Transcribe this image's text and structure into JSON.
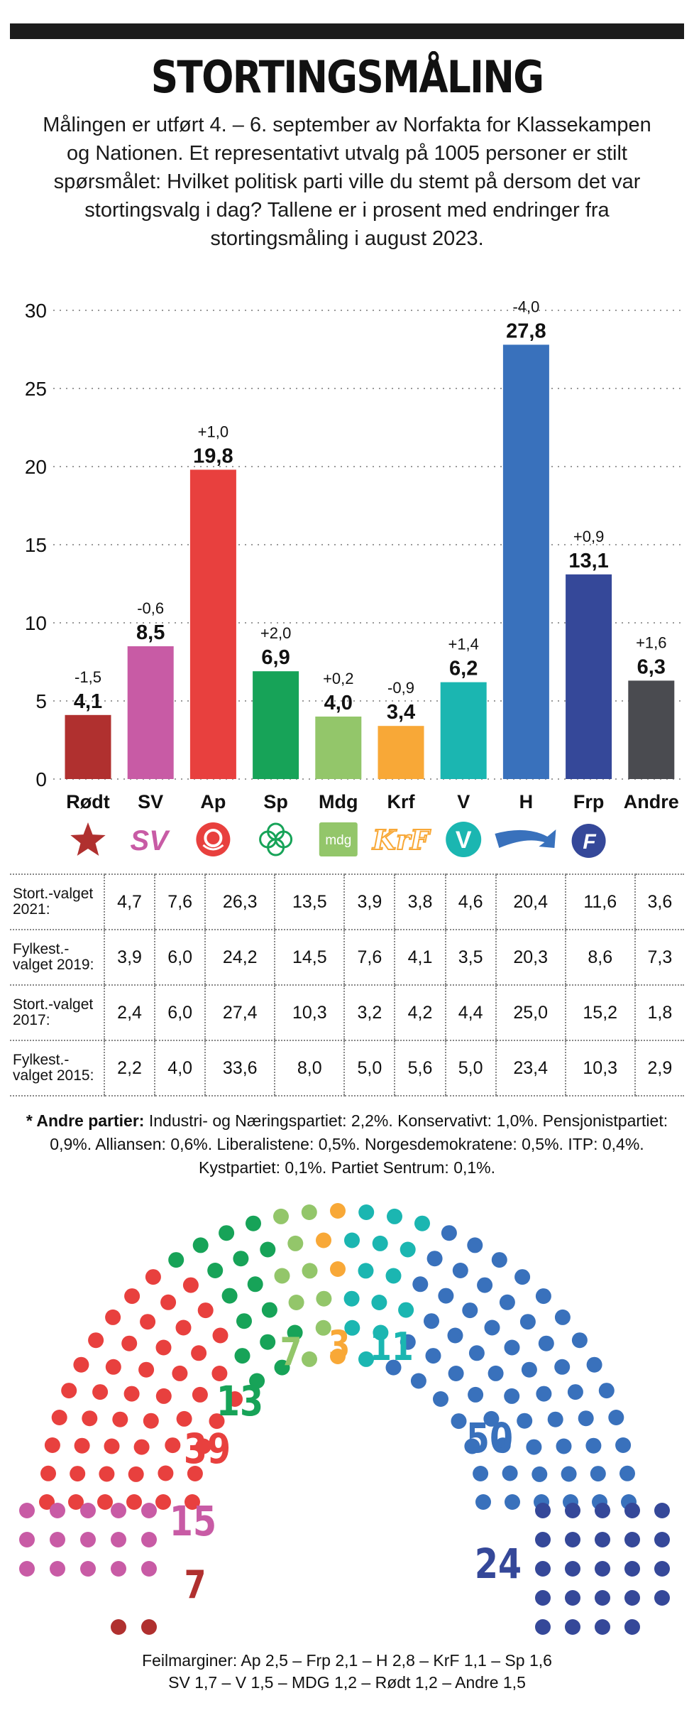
{
  "title": "STORTINGSMÅLING",
  "intro": "Målingen er utført 4. – 6. september av Norfakta for Klassekampen og Nationen. Et representativt utvalg på 1005 personer er stilt spørsmålet: Hvilket politisk parti ville du stemt på dersom det var stortingsvalg i dag? Tallene er i prosent med endringer fra stortingsmåling i august 2023.",
  "chart_data": {
    "type": "bar",
    "title": "STORTINGSMÅLING",
    "ylim": [
      0,
      30
    ],
    "yticks": [
      0,
      5,
      10,
      15,
      20,
      25,
      30
    ],
    "grid": true,
    "categories": [
      "Rødt",
      "SV",
      "Ap",
      "Sp",
      "Mdg",
      "Krf",
      "V",
      "H",
      "Frp",
      "Andre"
    ],
    "values": [
      4.1,
      8.5,
      19.8,
      6.9,
      4.0,
      3.4,
      6.2,
      27.8,
      13.1,
      6.3
    ],
    "value_labels": [
      "4,1",
      "8,5",
      "19,8",
      "6,9",
      "4,0",
      "3,4",
      "6,2",
      "27,8",
      "13,1",
      "6,3"
    ],
    "change_labels": [
      "-1,5",
      "-0,6",
      "+1,0",
      "+2,0",
      "+0,2",
      "-0,9",
      "+1,4",
      "-4,0",
      "+0,9",
      "+1,6"
    ],
    "colors": [
      "#B0302F",
      "#C85BA5",
      "#E8403E",
      "#17A358",
      "#93C66A",
      "#F8A837",
      "#1BB6B1",
      "#3971BC",
      "#354899",
      "#4A4B50"
    ],
    "logos": [
      "Rødt logo",
      "SV logo",
      "Ap logo",
      "Sp logo",
      "MDG logo",
      "KrF logo",
      "Venstre logo",
      "Høyre logo",
      "FrP logo",
      ""
    ],
    "logo_text": {
      "SV": "SV",
      "Mdg": "mdg",
      "Krf": "KrF",
      "V": "V",
      "Frp": "F"
    }
  },
  "table": {
    "rows": [
      {
        "label": "Stort.-valget 2021:",
        "values": [
          "4,7",
          "7,6",
          "26,3",
          "13,5",
          "3,9",
          "3,8",
          "4,6",
          "20,4",
          "11,6",
          "3,6"
        ]
      },
      {
        "label": "Fylkest.-valget 2019:",
        "values": [
          "3,9",
          "6,0",
          "24,2",
          "14,5",
          "7,6",
          "4,1",
          "3,5",
          "20,3",
          "8,6",
          "7,3"
        ]
      },
      {
        "label": "Stort.-valget 2017:",
        "values": [
          "2,4",
          "6,0",
          "27,4",
          "10,3",
          "3,2",
          "4,2",
          "4,4",
          "25,0",
          "15,2",
          "1,8"
        ]
      },
      {
        "label": "Fylkest.-valget 2015:",
        "values": [
          "2,2",
          "4,0",
          "33,6",
          "8,0",
          "5,0",
          "5,6",
          "5,0",
          "23,4",
          "10,3",
          "2,9"
        ]
      }
    ]
  },
  "footnote": {
    "bold": "* Andre partier:",
    "text": " Industri- og Næringspartiet: 2,2%. Konservativt: 1,0%. Pensjonistpartiet: 0,9%. Alliansen: 0,6%. Liberalistene: 0,5%. Norgesdemokratene: 0,5%. ITP: 0,4%. Kystpartiet: 0,1%. Partiet Sentrum: 0,1%."
  },
  "seats": {
    "parties": [
      {
        "name": "Ap",
        "seats": 39,
        "label": "39",
        "color": "#E8403E"
      },
      {
        "name": "Sp",
        "seats": 13,
        "label": "13",
        "color": "#17A358"
      },
      {
        "name": "Mdg",
        "seats": 7,
        "label": "7",
        "color": "#93C66A"
      },
      {
        "name": "Krf",
        "seats": 3,
        "label": "3",
        "color": "#F8A837"
      },
      {
        "name": "V",
        "seats": 11,
        "label": "11",
        "color": "#1BB6B1"
      },
      {
        "name": "H",
        "seats": 50,
        "label": "50",
        "color": "#3971BC"
      },
      {
        "name": "SV",
        "seats": 15,
        "label": "15",
        "color": "#C85BA5"
      },
      {
        "name": "Rødt",
        "seats": 7,
        "label": "7",
        "color": "#B0302F"
      },
      {
        "name": "Frp",
        "seats": 24,
        "label": "24",
        "color": "#354899"
      }
    ]
  },
  "margins": {
    "line1": "Feilmarginer: Ap  2,5 – Frp 2,1 – H 2,8 – KrF 1,1 – Sp 1,6",
    "line2": "SV 1,7 – V 1,5 – MDG 1,2 – Rødt 1,2 – Andre 1,5"
  }
}
